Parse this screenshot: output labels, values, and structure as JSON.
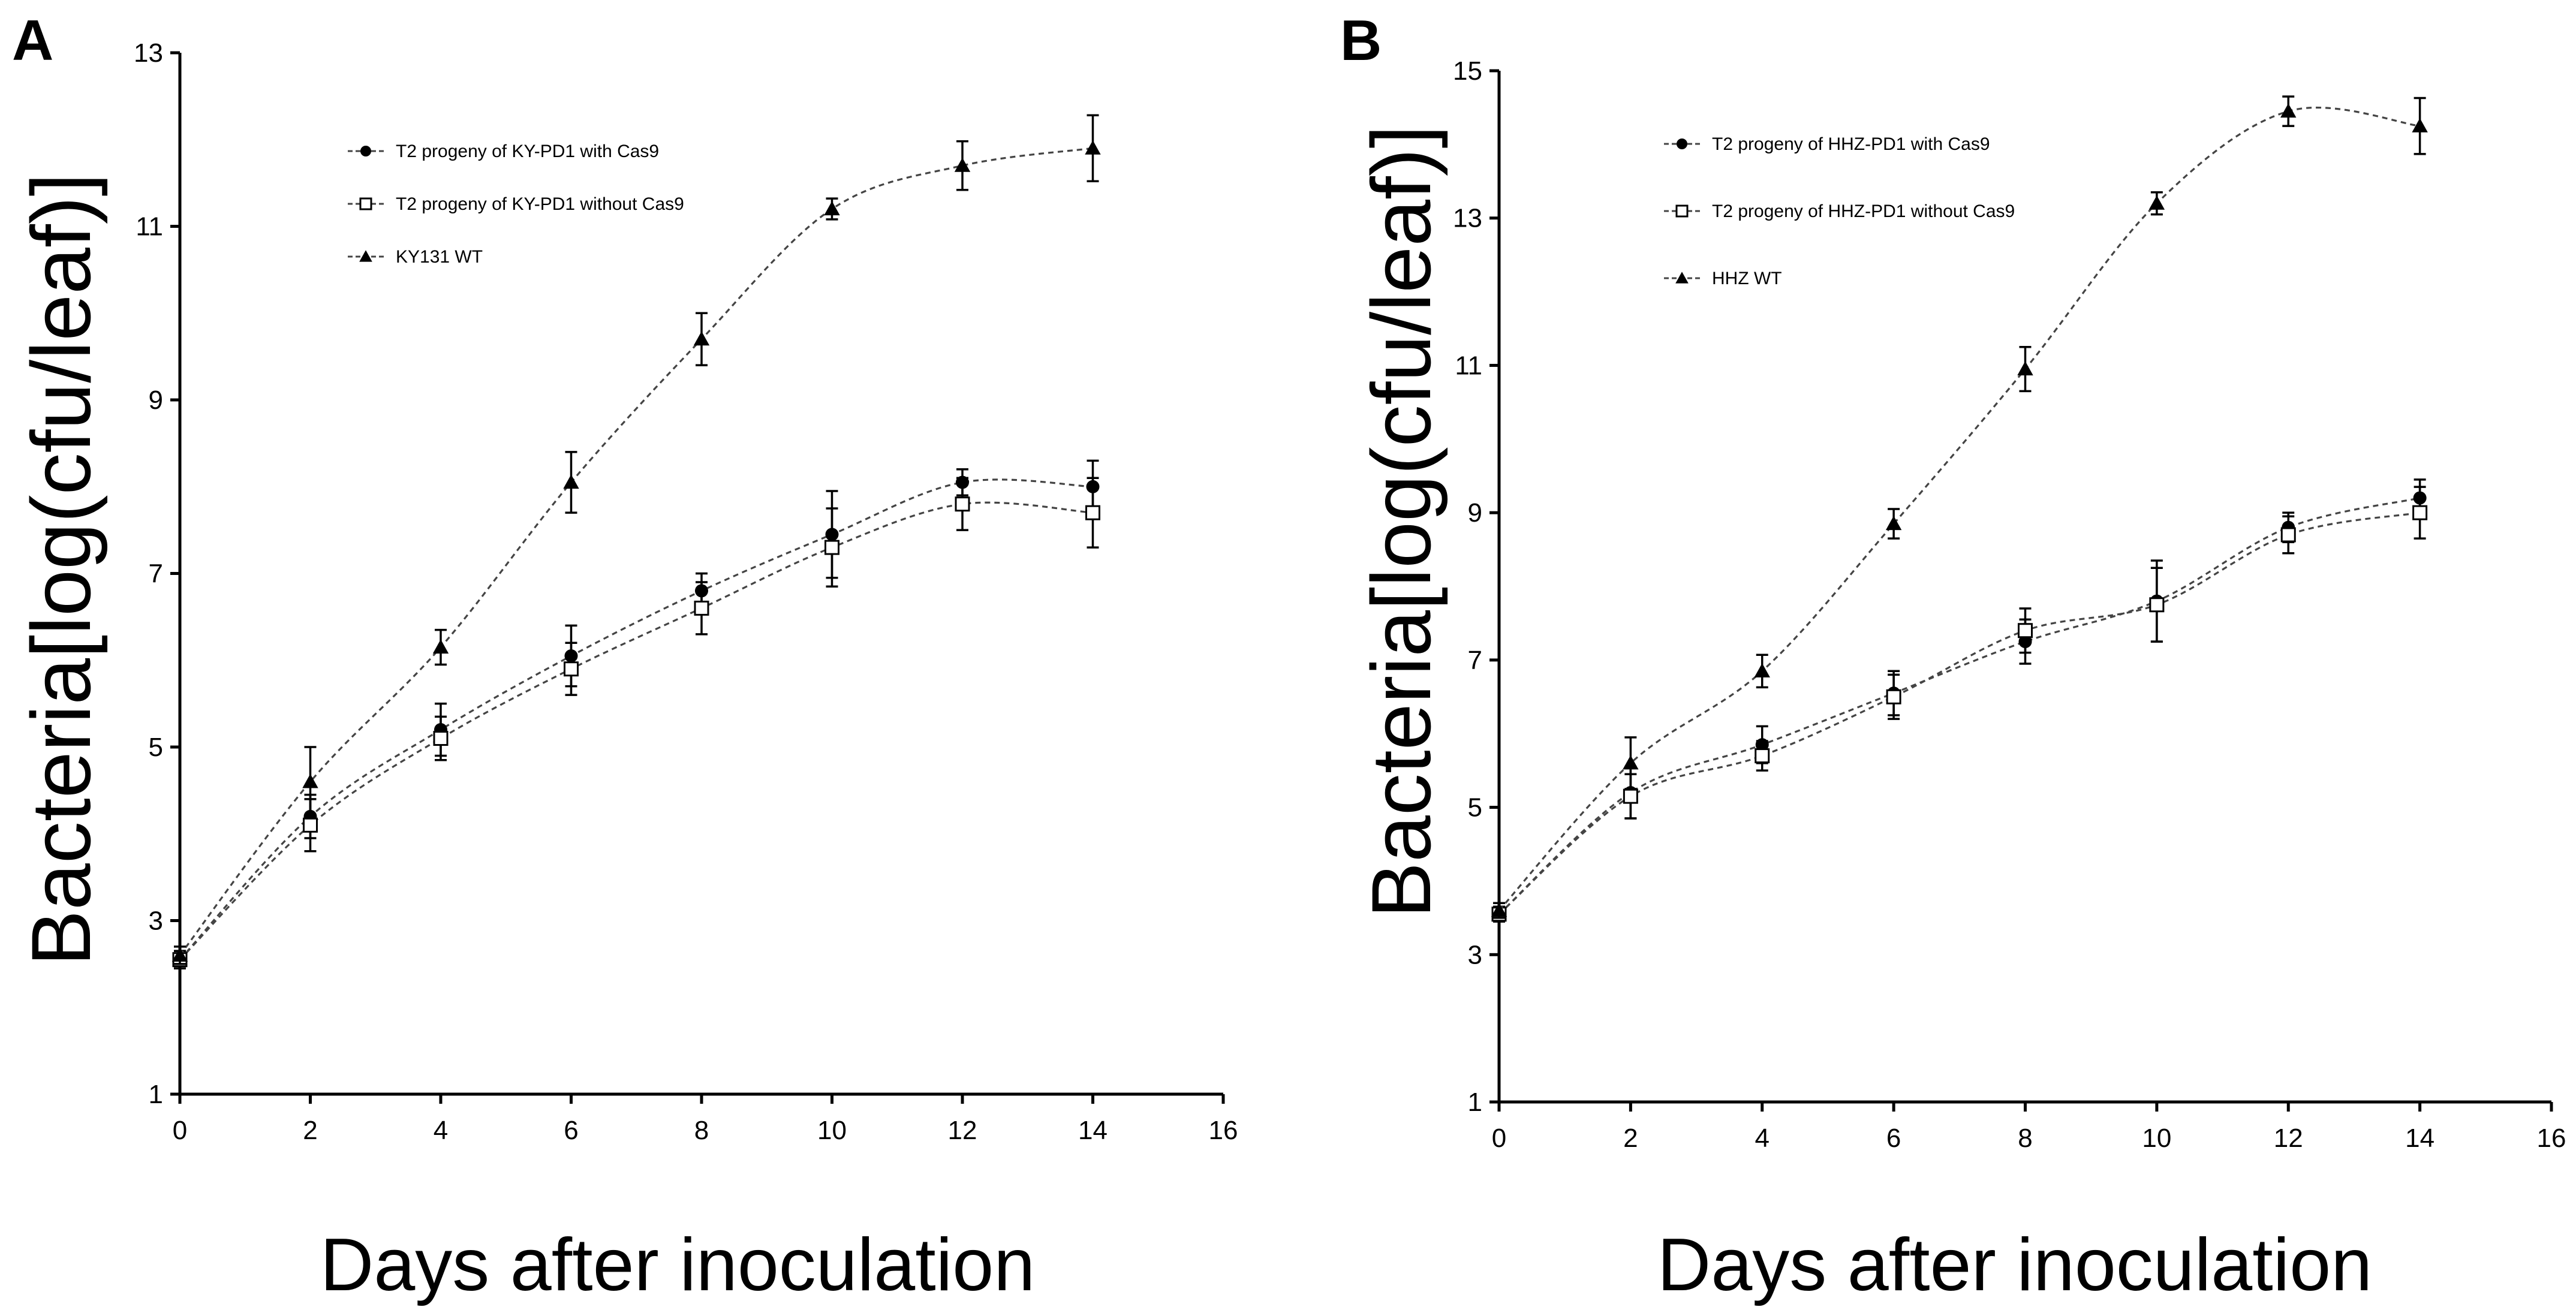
{
  "chart_data": [
    {
      "type": "line",
      "panel": "A",
      "title": "",
      "xlabel": "Days after inoculation",
      "ylabel": "Bacteria[log(cfu/leaf)]",
      "xlim": [
        0,
        16
      ],
      "ylim": [
        1,
        13
      ],
      "xticks": [
        0,
        2,
        4,
        6,
        8,
        10,
        12,
        14,
        16
      ],
      "yticks": [
        1,
        3,
        5,
        7,
        9,
        11,
        13
      ],
      "grid": false,
      "legend_position": "top-center",
      "series": [
        {
          "name": "T2 progeny of KY-PD1 with Cas9",
          "marker": "circle-filled",
          "x": [
            0,
            2,
            4,
            6,
            8,
            10,
            12,
            14
          ],
          "y": [
            2.55,
            4.2,
            5.2,
            6.05,
            6.8,
            7.45,
            8.05,
            8.0
          ],
          "err": [
            0.1,
            0.25,
            0.3,
            0.35,
            0.2,
            0.5,
            0.15,
            0.3
          ]
        },
        {
          "name": "T2 progeny of KY-PD1 without Cas9",
          "marker": "square-open",
          "x": [
            0,
            2,
            4,
            6,
            8,
            10,
            12,
            14
          ],
          "y": [
            2.55,
            4.1,
            5.1,
            5.9,
            6.6,
            7.3,
            7.8,
            7.7
          ],
          "err": [
            0.1,
            0.3,
            0.25,
            0.3,
            0.3,
            0.45,
            0.3,
            0.4
          ]
        },
        {
          "name": "KY131 WT",
          "marker": "triangle-filled",
          "x": [
            0,
            2,
            4,
            6,
            8,
            10,
            12,
            14
          ],
          "y": [
            2.6,
            4.6,
            6.15,
            8.05,
            9.7,
            11.2,
            11.7,
            11.9
          ],
          "err": [
            0.1,
            0.4,
            0.2,
            0.35,
            0.3,
            0.12,
            0.28,
            0.38
          ]
        }
      ]
    },
    {
      "type": "line",
      "panel": "B",
      "title": "",
      "xlabel": "Days after inoculation",
      "ylabel": "Bacteria[log(cfu/leaf)]",
      "xlim": [
        0,
        16
      ],
      "ylim": [
        1,
        15
      ],
      "xticks": [
        0,
        2,
        4,
        6,
        8,
        10,
        12,
        14,
        16
      ],
      "yticks": [
        1,
        3,
        5,
        7,
        9,
        11,
        13,
        15
      ],
      "grid": false,
      "legend_position": "top-center",
      "series": [
        {
          "name": "T2 progeny of HHZ-PD1 with Cas9",
          "marker": "circle-filled",
          "x": [
            0,
            2,
            4,
            6,
            8,
            10,
            12,
            14
          ],
          "y": [
            3.55,
            5.2,
            5.85,
            6.55,
            7.25,
            7.8,
            8.8,
            9.2
          ],
          "err": [
            0.1,
            0.35,
            0.25,
            0.3,
            0.3,
            0.55,
            0.2,
            0.25
          ]
        },
        {
          "name": "T2 progeny of HHZ-PD1 without Cas9",
          "marker": "square-open",
          "x": [
            0,
            2,
            4,
            6,
            8,
            10,
            12,
            14
          ],
          "y": [
            3.55,
            5.15,
            5.7,
            6.5,
            7.4,
            7.75,
            8.7,
            9.0
          ],
          "err": [
            0.1,
            0.3,
            0.2,
            0.3,
            0.3,
            0.5,
            0.25,
            0.35
          ]
        },
        {
          "name": "HHZ WT",
          "marker": "triangle-filled",
          "x": [
            0,
            2,
            4,
            6,
            8,
            10,
            12,
            14
          ],
          "y": [
            3.6,
            5.6,
            6.85,
            8.85,
            10.95,
            13.2,
            14.45,
            14.25
          ],
          "err": [
            0.1,
            0.35,
            0.22,
            0.2,
            0.3,
            0.15,
            0.2,
            0.38
          ]
        }
      ]
    }
  ]
}
